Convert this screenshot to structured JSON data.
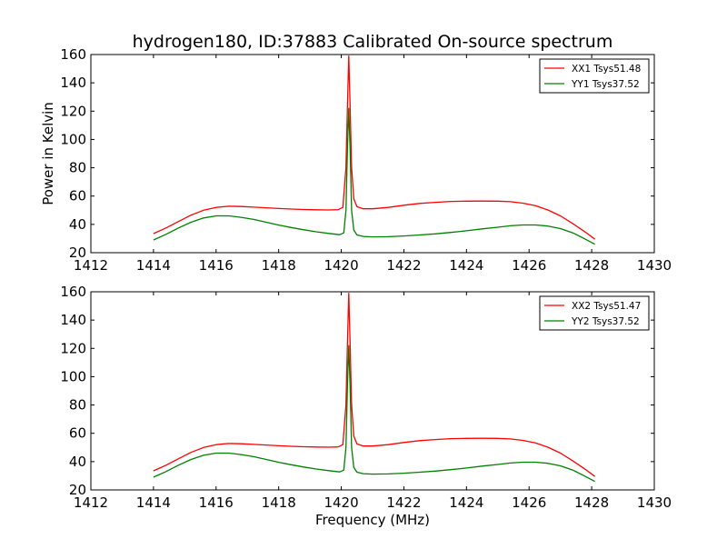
{
  "figure": {
    "title": "hydrogen180, ID:37883 Calibrated On-source spectrum",
    "xlabel": "Frequency (MHz)",
    "ylabel": "Power in Kelvin"
  },
  "colors": {
    "series_xx": "#ff0000",
    "series_yy": "#008000",
    "axes": "#000000",
    "background": "#ffffff"
  },
  "chart_data": [
    {
      "type": "line",
      "title": "hydrogen180, ID:37883 Calibrated On-source spectrum",
      "xlabel": "",
      "ylabel": "Power in Kelvin",
      "xlim": [
        1412,
        1430
      ],
      "ylim": [
        20,
        160
      ],
      "xticks": [
        1412,
        1414,
        1416,
        1418,
        1420,
        1422,
        1424,
        1426,
        1428,
        1430
      ],
      "yticks": [
        20,
        40,
        60,
        80,
        100,
        120,
        140,
        160
      ],
      "legend_position": "top-right",
      "grid": false,
      "series": [
        {
          "name": "XX1 Tsys51.48",
          "color": "#ff0000",
          "points": [
            [
              1414.0,
              33.5
            ],
            [
              1414.4,
              37.5
            ],
            [
              1414.8,
              42.0
            ],
            [
              1415.2,
              46.5
            ],
            [
              1415.6,
              50.0
            ],
            [
              1416.0,
              52.0
            ],
            [
              1416.4,
              52.8
            ],
            [
              1416.8,
              52.6
            ],
            [
              1417.2,
              52.2
            ],
            [
              1417.6,
              51.7
            ],
            [
              1418.0,
              51.2
            ],
            [
              1418.4,
              50.8
            ],
            [
              1418.8,
              50.5
            ],
            [
              1419.2,
              50.3
            ],
            [
              1419.6,
              50.2
            ],
            [
              1419.9,
              50.4
            ],
            [
              1420.05,
              52.0
            ],
            [
              1420.15,
              80.0
            ],
            [
              1420.2,
              125.0
            ],
            [
              1420.24,
              159.0
            ],
            [
              1420.28,
              125.0
            ],
            [
              1420.33,
              80.0
            ],
            [
              1420.4,
              58.0
            ],
            [
              1420.5,
              52.5
            ],
            [
              1420.7,
              51.0
            ],
            [
              1421.0,
              51.0
            ],
            [
              1421.5,
              52.0
            ],
            [
              1422.0,
              53.5
            ],
            [
              1422.5,
              54.8
            ],
            [
              1423.0,
              55.6
            ],
            [
              1423.5,
              56.2
            ],
            [
              1424.0,
              56.4
            ],
            [
              1424.5,
              56.5
            ],
            [
              1425.0,
              56.4
            ],
            [
              1425.4,
              56.0
            ],
            [
              1425.8,
              55.0
            ],
            [
              1426.2,
              53.2
            ],
            [
              1426.6,
              50.2
            ],
            [
              1427.0,
              46.0
            ],
            [
              1427.4,
              40.5
            ],
            [
              1427.8,
              34.5
            ],
            [
              1428.1,
              29.5
            ]
          ]
        },
        {
          "name": "YY1 Tsys37.52",
          "color": "#008000",
          "points": [
            [
              1414.0,
              29.0
            ],
            [
              1414.4,
              33.0
            ],
            [
              1414.8,
              37.5
            ],
            [
              1415.2,
              41.5
            ],
            [
              1415.6,
              44.5
            ],
            [
              1416.0,
              46.0
            ],
            [
              1416.4,
              46.0
            ],
            [
              1416.8,
              45.0
            ],
            [
              1417.2,
              43.5
            ],
            [
              1417.6,
              41.5
            ],
            [
              1418.0,
              39.5
            ],
            [
              1418.4,
              37.8
            ],
            [
              1418.8,
              36.2
            ],
            [
              1419.2,
              34.8
            ],
            [
              1419.6,
              33.6
            ],
            [
              1419.95,
              32.7
            ],
            [
              1420.08,
              34.0
            ],
            [
              1420.15,
              50.0
            ],
            [
              1420.2,
              95.0
            ],
            [
              1420.24,
              122.0
            ],
            [
              1420.28,
              95.0
            ],
            [
              1420.33,
              50.0
            ],
            [
              1420.4,
              36.0
            ],
            [
              1420.5,
              32.5
            ],
            [
              1420.7,
              31.5
            ],
            [
              1421.0,
              31.2
            ],
            [
              1421.5,
              31.3
            ],
            [
              1422.0,
              31.8
            ],
            [
              1422.5,
              32.5
            ],
            [
              1423.0,
              33.3
            ],
            [
              1423.5,
              34.3
            ],
            [
              1424.0,
              35.5
            ],
            [
              1424.5,
              36.8
            ],
            [
              1425.0,
              38.0
            ],
            [
              1425.4,
              39.0
            ],
            [
              1425.8,
              39.6
            ],
            [
              1426.2,
              39.6
            ],
            [
              1426.6,
              38.8
            ],
            [
              1427.0,
              37.0
            ],
            [
              1427.4,
              34.0
            ],
            [
              1427.8,
              29.5
            ],
            [
              1428.1,
              26.0
            ]
          ]
        }
      ]
    },
    {
      "type": "line",
      "title": "",
      "xlabel": "Frequency (MHz)",
      "ylabel": "",
      "xlim": [
        1412,
        1430
      ],
      "ylim": [
        20,
        160
      ],
      "xticks": [
        1412,
        1414,
        1416,
        1418,
        1420,
        1422,
        1424,
        1426,
        1428,
        1430
      ],
      "yticks": [
        20,
        40,
        60,
        80,
        100,
        120,
        140,
        160
      ],
      "legend_position": "top-right",
      "grid": false,
      "series": [
        {
          "name": "XX2 Tsys51.47",
          "color": "#ff0000",
          "points": [
            [
              1414.0,
              33.5
            ],
            [
              1414.4,
              37.5
            ],
            [
              1414.8,
              42.0
            ],
            [
              1415.2,
              46.5
            ],
            [
              1415.6,
              50.0
            ],
            [
              1416.0,
              52.0
            ],
            [
              1416.4,
              52.8
            ],
            [
              1416.8,
              52.6
            ],
            [
              1417.2,
              52.2
            ],
            [
              1417.6,
              51.7
            ],
            [
              1418.0,
              51.2
            ],
            [
              1418.4,
              50.8
            ],
            [
              1418.8,
              50.5
            ],
            [
              1419.2,
              50.3
            ],
            [
              1419.6,
              50.2
            ],
            [
              1419.9,
              50.4
            ],
            [
              1420.05,
              52.0
            ],
            [
              1420.15,
              80.0
            ],
            [
              1420.2,
              125.0
            ],
            [
              1420.24,
              159.0
            ],
            [
              1420.28,
              125.0
            ],
            [
              1420.33,
              80.0
            ],
            [
              1420.4,
              58.0
            ],
            [
              1420.5,
              52.5
            ],
            [
              1420.7,
              51.0
            ],
            [
              1421.0,
              51.0
            ],
            [
              1421.5,
              52.0
            ],
            [
              1422.0,
              53.5
            ],
            [
              1422.5,
              54.8
            ],
            [
              1423.0,
              55.6
            ],
            [
              1423.5,
              56.2
            ],
            [
              1424.0,
              56.4
            ],
            [
              1424.5,
              56.5
            ],
            [
              1425.0,
              56.4
            ],
            [
              1425.4,
              56.0
            ],
            [
              1425.8,
              55.0
            ],
            [
              1426.2,
              53.2
            ],
            [
              1426.6,
              50.2
            ],
            [
              1427.0,
              46.0
            ],
            [
              1427.4,
              40.5
            ],
            [
              1427.8,
              34.5
            ],
            [
              1428.1,
              29.5
            ]
          ]
        },
        {
          "name": "YY2 Tsys37.52",
          "color": "#008000",
          "points": [
            [
              1414.0,
              29.0
            ],
            [
              1414.4,
              33.0
            ],
            [
              1414.8,
              37.5
            ],
            [
              1415.2,
              41.5
            ],
            [
              1415.6,
              44.5
            ],
            [
              1416.0,
              46.0
            ],
            [
              1416.4,
              46.0
            ],
            [
              1416.8,
              45.0
            ],
            [
              1417.2,
              43.5
            ],
            [
              1417.6,
              41.5
            ],
            [
              1418.0,
              39.5
            ],
            [
              1418.4,
              37.8
            ],
            [
              1418.8,
              36.2
            ],
            [
              1419.2,
              34.8
            ],
            [
              1419.6,
              33.6
            ],
            [
              1419.95,
              32.7
            ],
            [
              1420.08,
              34.0
            ],
            [
              1420.15,
              50.0
            ],
            [
              1420.2,
              95.0
            ],
            [
              1420.24,
              122.0
            ],
            [
              1420.28,
              95.0
            ],
            [
              1420.33,
              50.0
            ],
            [
              1420.4,
              36.0
            ],
            [
              1420.5,
              32.5
            ],
            [
              1420.7,
              31.5
            ],
            [
              1421.0,
              31.2
            ],
            [
              1421.5,
              31.3
            ],
            [
              1422.0,
              31.8
            ],
            [
              1422.5,
              32.5
            ],
            [
              1423.0,
              33.3
            ],
            [
              1423.5,
              34.3
            ],
            [
              1424.0,
              35.5
            ],
            [
              1424.5,
              36.8
            ],
            [
              1425.0,
              38.0
            ],
            [
              1425.4,
              39.0
            ],
            [
              1425.8,
              39.6
            ],
            [
              1426.2,
              39.6
            ],
            [
              1426.6,
              38.8
            ],
            [
              1427.0,
              37.0
            ],
            [
              1427.4,
              34.0
            ],
            [
              1427.8,
              29.5
            ],
            [
              1428.1,
              26.0
            ]
          ]
        }
      ]
    }
  ]
}
